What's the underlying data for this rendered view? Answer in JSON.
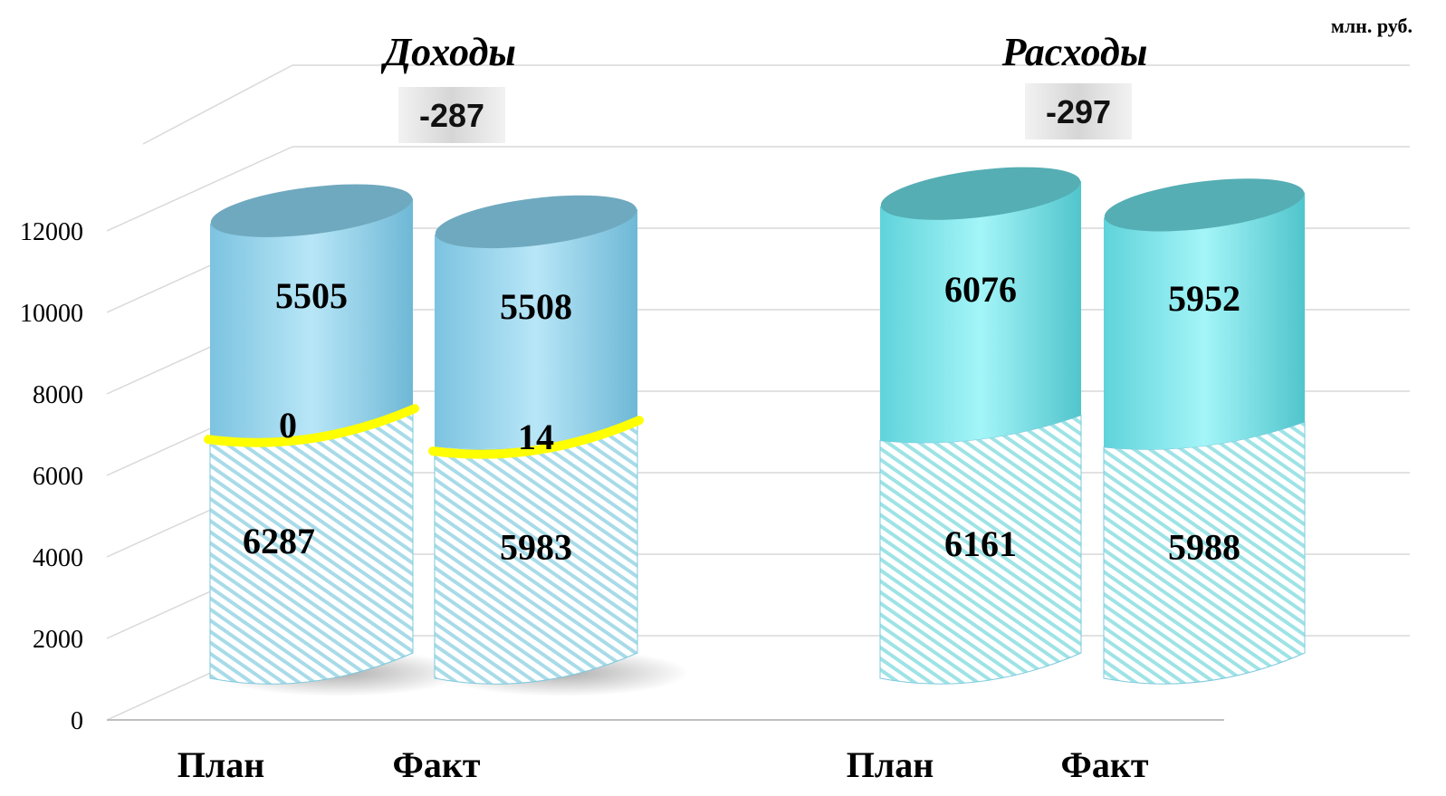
{
  "chart_data": {
    "type": "bar",
    "stacked": true,
    "unit_label": "млн. руб.",
    "ylim": [
      0,
      12000
    ],
    "y_ticks": [
      "0",
      "2000",
      "4000",
      "6000",
      "8000",
      "10000",
      "12000"
    ],
    "grid": true,
    "groups": [
      {
        "title": "Доходы",
        "difference": "-287",
        "categories": [
          "План",
          "Факт"
        ],
        "segments": [
          {
            "values": [
              6287,
              5983
            ],
            "labels": [
              "6287",
              "5983"
            ],
            "style": "hatched"
          },
          {
            "values": [
              0,
              14
            ],
            "labels": [
              "0",
              "14"
            ],
            "style": "ring"
          },
          {
            "values": [
              5505,
              5508
            ],
            "labels": [
              "5505",
              "5508"
            ],
            "style": "solid"
          }
        ]
      },
      {
        "title": "Расходы",
        "difference": "-297",
        "categories": [
          "План",
          "Факт"
        ],
        "segments": [
          {
            "values": [
              6161,
              5988
            ],
            "labels": [
              "6161",
              "5988"
            ],
            "style": "hatched"
          },
          {
            "values": [
              6076,
              5952
            ],
            "labels": [
              "6076",
              "5952"
            ],
            "style": "solid"
          }
        ]
      }
    ],
    "colors": {
      "income": "#8fd3ee",
      "income_dark": "#6fa9bf",
      "expense": "#7eeaf0",
      "expense_dark": "#55aeb4",
      "ring": "#ffff00",
      "hatch": "#a8dbe8"
    }
  }
}
